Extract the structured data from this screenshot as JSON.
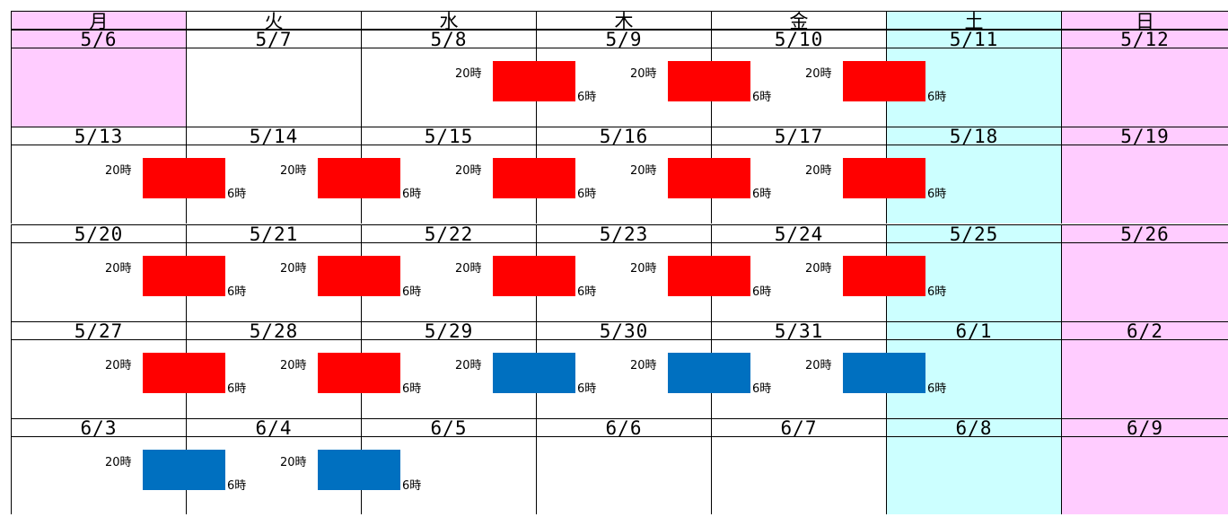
{
  "weekdays": [
    "月",
    "火",
    "水",
    "木",
    "金",
    "土",
    "日"
  ],
  "weeks": [
    {
      "dates": [
        "5/6",
        "5/7",
        "5/8",
        "5/9",
        "5/10",
        "5/11",
        "5/12"
      ],
      "shifts": [
        {
          "day": 2,
          "color": "red"
        },
        {
          "day": 3,
          "color": "red"
        },
        {
          "day": 4,
          "color": "red"
        }
      ]
    },
    {
      "dates": [
        "5/13",
        "5/14",
        "5/15",
        "5/16",
        "5/17",
        "5/18",
        "5/19"
      ],
      "shifts": [
        {
          "day": 0,
          "color": "red"
        },
        {
          "day": 1,
          "color": "red"
        },
        {
          "day": 2,
          "color": "red"
        },
        {
          "day": 3,
          "color": "red"
        },
        {
          "day": 4,
          "color": "red"
        }
      ]
    },
    {
      "dates": [
        "5/20",
        "5/21",
        "5/22",
        "5/23",
        "5/24",
        "5/25",
        "5/26"
      ],
      "shifts": [
        {
          "day": 0,
          "color": "red"
        },
        {
          "day": 1,
          "color": "red"
        },
        {
          "day": 2,
          "color": "red"
        },
        {
          "day": 3,
          "color": "red"
        },
        {
          "day": 4,
          "color": "red"
        }
      ]
    },
    {
      "dates": [
        "5/27",
        "5/28",
        "5/29",
        "5/30",
        "5/31",
        "6/1",
        "6/2"
      ],
      "shifts": [
        {
          "day": 0,
          "color": "red"
        },
        {
          "day": 1,
          "color": "red"
        },
        {
          "day": 2,
          "color": "blue"
        },
        {
          "day": 3,
          "color": "blue"
        },
        {
          "day": 4,
          "color": "blue"
        }
      ]
    },
    {
      "dates": [
        "6/3",
        "6/4",
        "6/5",
        "6/6",
        "6/7",
        "6/8",
        "6/9"
      ],
      "shifts": [
        {
          "day": 0,
          "color": "blue"
        },
        {
          "day": 1,
          "color": "blue"
        }
      ]
    }
  ],
  "shift_start_label": "20時",
  "shift_end_label": "6時",
  "colors": {
    "weekend_sat": "#ccffff",
    "weekend_sun_mon": "#ffccff",
    "shift_red": "#ff0000",
    "shift_blue": "#0070c0"
  }
}
